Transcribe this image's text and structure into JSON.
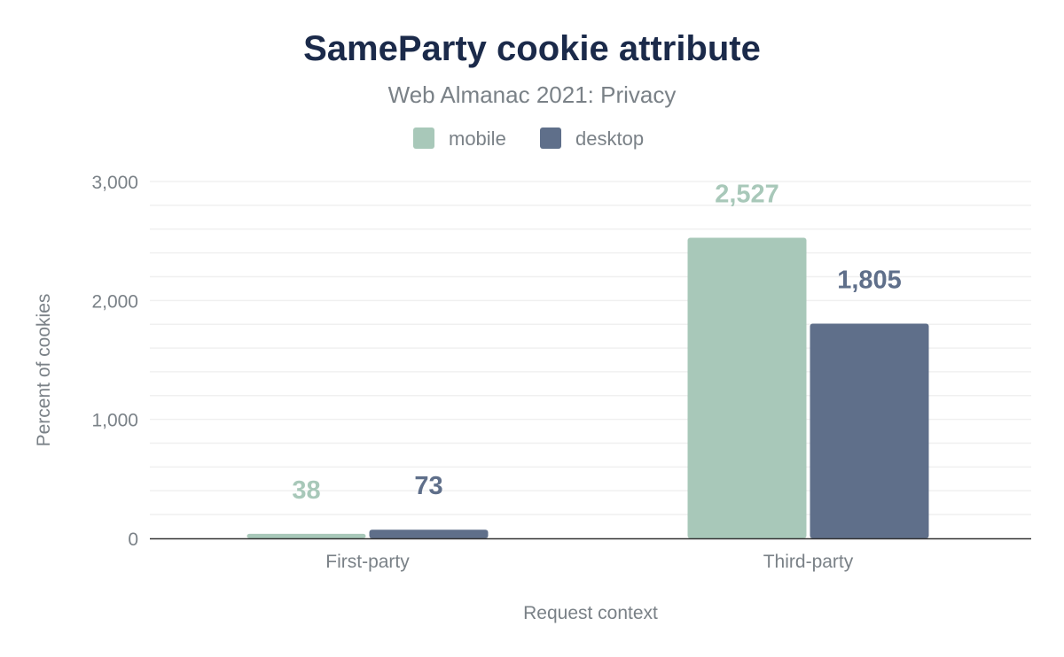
{
  "chart_data": {
    "type": "bar",
    "title": "SameParty cookie attribute",
    "subtitle": "Web Almanac 2021: Privacy",
    "xlabel": "Request context",
    "ylabel": "Percent of cookies",
    "categories": [
      "First-party",
      "Third-party"
    ],
    "series": [
      {
        "name": "mobile",
        "values": [
          38,
          2527
        ],
        "labels": [
          "38",
          "2,527"
        ],
        "color": "#a8c8b9"
      },
      {
        "name": "desktop",
        "values": [
          73,
          1805
        ],
        "labels": [
          "73",
          "1,805"
        ],
        "color": "#5f6f8a"
      }
    ],
    "ylim": [
      0,
      3000
    ],
    "yticks": [
      0,
      1000,
      2000,
      3000
    ],
    "ytick_labels": [
      "0",
      "1,000",
      "2,000",
      "3,000"
    ],
    "minor_grid_step": 200,
    "grid": true,
    "legend_position": "top-center",
    "colors": {
      "title": "#1b2a4a",
      "text": "#7a8187",
      "grid": "#f0f0f0",
      "axis": "#333333"
    }
  }
}
